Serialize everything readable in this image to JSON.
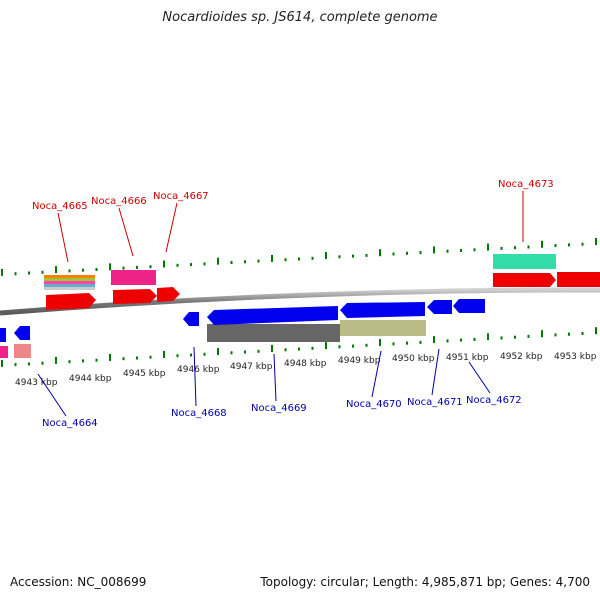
{
  "title": "Nocardioides sp. JS614, complete genome",
  "footer": {
    "accession": "Accession: NC_008699",
    "summary": "Topology: circular; Length: 4,985,871 bp; Genes: 4,700"
  },
  "colors": {
    "forward_label": "#cc0000",
    "reverse_label": "#0000aa",
    "tick": "#007700",
    "backbone": "#888888",
    "forward_gene": "#ee0000",
    "reverse_gene": "#0000ee"
  },
  "scale_labels": [
    "4943 kbp",
    "4944 kbp",
    "4945 kbp",
    "4946 kbp",
    "4947 kbp",
    "4948 kbp",
    "4949 kbp",
    "4950 kbp",
    "4951 kbp",
    "4952 kbp",
    "4953 kbp"
  ],
  "gene_labels": {
    "forward": [
      "Noca_4665",
      "Noca_4666",
      "Noca_4667",
      "Noca_4673"
    ],
    "reverse": [
      "Noca_4664",
      "Noca_4668",
      "Noca_4669",
      "Noca_4670",
      "Noca_4671",
      "Noca_4672"
    ]
  }
}
